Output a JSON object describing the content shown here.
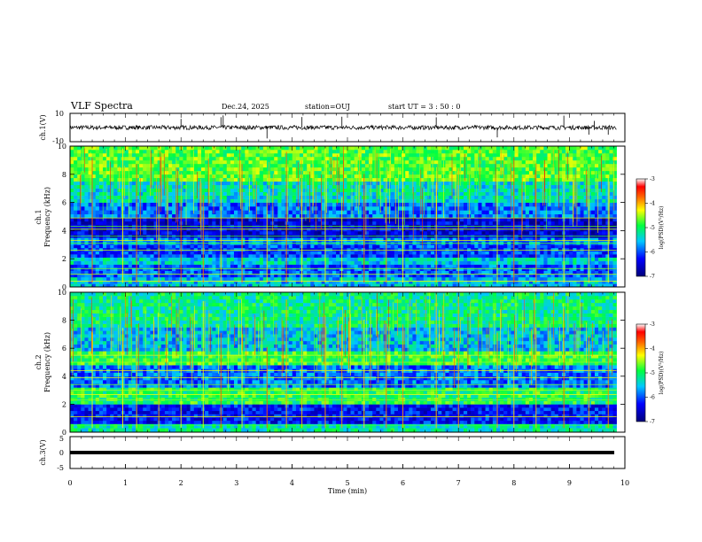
{
  "header": {
    "title": "VLF Spectra",
    "date": "Dec.24, 2025",
    "station": "station=OUJ",
    "start_ut": "start  UT  =   3  : 50 : 0"
  },
  "colors": {
    "spectrogram_low": "#00007a",
    "spectrogram_high": "#b00000",
    "trace": "#000000"
  },
  "chart_data": [
    {
      "id": "ch1-waveform",
      "type": "line",
      "ylabel": "ch.1(V)",
      "ylim": [
        -10,
        10
      ],
      "yticks": [
        "10",
        "-10"
      ],
      "xlim": [
        0,
        10
      ],
      "baseline": 0,
      "description_values": {
        "typical_amplitude": 1.5,
        "spike_times_min": [
          2.0,
          2.72,
          2.76,
          3.55,
          4.18,
          4.9,
          6.6,
          7.7,
          8.9,
          9.35,
          9.45,
          9.7
        ]
      }
    },
    {
      "id": "ch1-spectrogram",
      "type": "heatmap",
      "ylabel": "Frequency  (kHz)",
      "channel": "ch.1",
      "ylim": [
        0,
        10
      ],
      "yticks": [
        "0",
        "2",
        "4",
        "6",
        "8",
        "10"
      ],
      "xlim": [
        0,
        9.85
      ],
      "colorbar": {
        "label": "log(PSD)(V²/Hz)",
        "range": [
          -7,
          -3
        ],
        "ticks": [
          "-3",
          "-4",
          "-5",
          "-6",
          "-7"
        ]
      },
      "bands_khz": [
        {
          "from": 0.0,
          "to": 0.7,
          "level": -5.6
        },
        {
          "from": 0.7,
          "to": 1.6,
          "level": -6.0
        },
        {
          "from": 1.6,
          "to": 2.1,
          "level": -5.5
        },
        {
          "from": 2.1,
          "to": 3.0,
          "level": -6.1
        },
        {
          "from": 3.0,
          "to": 3.5,
          "level": -5.8
        },
        {
          "from": 3.5,
          "to": 4.9,
          "level": -6.5
        },
        {
          "from": 4.9,
          "to": 6.0,
          "level": -5.9
        },
        {
          "from": 6.0,
          "to": 7.5,
          "level": -5.4
        },
        {
          "from": 7.5,
          "to": 10.0,
          "level": -4.8
        }
      ],
      "lines_khz": [
        0.4,
        0.9,
        1.3,
        2.6,
        3.1,
        3.3,
        3.6,
        4.1,
        4.3,
        4.9
      ],
      "sferic_times_min": [
        0.4,
        0.95,
        1.2,
        1.6,
        2.0,
        2.4,
        2.72,
        3.1,
        3.55,
        3.9,
        4.18,
        4.6,
        4.9,
        5.3,
        5.7,
        6.0,
        6.6,
        7.0,
        7.7,
        8.0,
        8.4,
        8.9,
        9.35,
        9.7
      ]
    },
    {
      "id": "ch2-spectrogram",
      "type": "heatmap",
      "ylabel": "Frequency  (kHz)",
      "channel": "ch.2",
      "ylim": [
        0,
        10
      ],
      "yticks": [
        "0",
        "2",
        "4",
        "6",
        "8",
        "10"
      ],
      "xlim": [
        0,
        9.85
      ],
      "colorbar": {
        "label": "log(PSD)(V²/Hz)",
        "range": [
          -7,
          -3
        ],
        "ticks": [
          "-3",
          "-4",
          "-5",
          "-6",
          "-7"
        ]
      },
      "bands_khz": [
        {
          "from": 0.0,
          "to": 0.6,
          "level": -5.3
        },
        {
          "from": 0.6,
          "to": 2.0,
          "level": -6.3
        },
        {
          "from": 2.0,
          "to": 3.2,
          "level": -5.0
        },
        {
          "from": 3.2,
          "to": 4.8,
          "level": -5.9
        },
        {
          "from": 4.8,
          "to": 5.8,
          "level": -4.9
        },
        {
          "from": 5.8,
          "to": 7.5,
          "level": -5.6
        },
        {
          "from": 7.5,
          "to": 10.0,
          "level": -5.2
        }
      ],
      "lines_khz": [
        0.5,
        1.1,
        2.3,
        2.7,
        3.0,
        3.4,
        3.9,
        4.4,
        5.0,
        5.5
      ],
      "sferic_times_min": [
        0.4,
        0.95,
        1.2,
        1.6,
        2.0,
        2.4,
        2.72,
        3.1,
        3.55,
        3.9,
        4.18,
        4.6,
        4.9,
        5.3,
        5.7,
        6.0,
        6.6,
        7.0,
        7.7,
        8.0,
        8.4,
        8.9,
        9.35,
        9.7
      ]
    },
    {
      "id": "ch3-waveform",
      "type": "line",
      "ylabel": "ch.3(V)",
      "ylim": [
        -5,
        5
      ],
      "yticks": [
        "5",
        "0",
        "-5"
      ],
      "xlim": [
        0,
        9.85
      ],
      "baseline": 0,
      "xlabel": "Time  (min)",
      "xticks": [
        "0",
        "1",
        "2",
        "3",
        "4",
        "5",
        "6",
        "7",
        "8",
        "9",
        "10"
      ]
    }
  ]
}
